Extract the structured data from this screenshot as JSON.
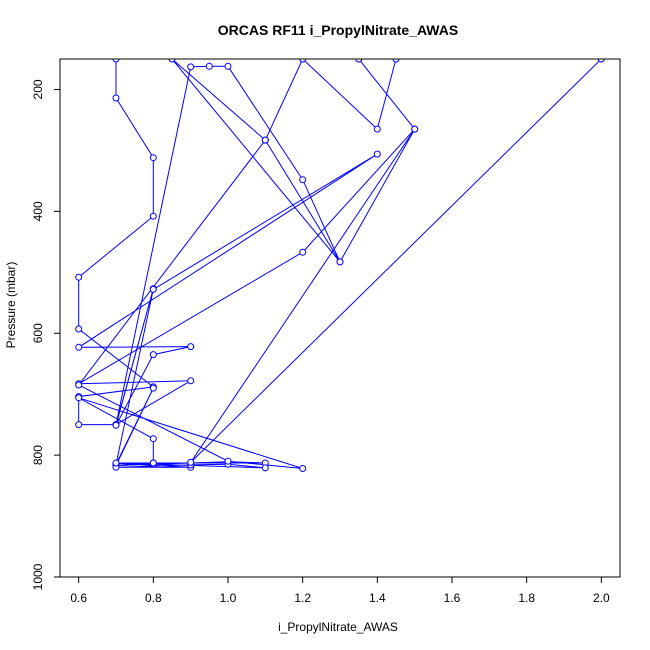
{
  "chart_data": {
    "type": "line",
    "title": "ORCAS RF11 i_PropylNitrate_AWAS",
    "xlabel": "i_PropylNitrate_AWAS",
    "ylabel": "Pressure (mbar)",
    "xlim": [
      0.55,
      2.05
    ],
    "ylim": [
      1000,
      150
    ],
    "y_reversed": true,
    "xticks": [
      "0.6",
      "0.8",
      "1.0",
      "1.2",
      "1.4",
      "1.6",
      "1.8",
      "2.0"
    ],
    "yticks": [
      "200",
      "400",
      "600",
      "800",
      "1000"
    ],
    "grid": false,
    "legend": "none",
    "line_color": "#0000ff",
    "marker": "open-circle",
    "series": [
      {
        "points": [
          [
            0.7,
            150
          ],
          [
            0.7,
            214
          ],
          [
            0.8,
            312
          ],
          [
            0.8,
            408
          ],
          [
            0.6,
            508
          ],
          [
            0.6,
            593
          ],
          [
            0.8,
            688
          ],
          [
            0.6,
            704
          ],
          [
            0.6,
            750
          ],
          [
            0.7,
            750
          ],
          [
            0.9,
            678
          ],
          [
            0.6,
            683
          ],
          [
            1.2,
            467
          ],
          [
            1.5,
            265
          ],
          [
            1.3,
            483
          ],
          [
            1.2,
            348
          ],
          [
            1.0,
            162
          ],
          [
            0.95,
            162
          ],
          [
            0.9,
            163
          ],
          [
            0.7,
            750
          ],
          [
            0.8,
            527
          ],
          [
            0.7,
            751
          ],
          [
            0.8,
            635
          ],
          [
            0.9,
            622
          ],
          [
            0.6,
            623
          ],
          [
            1.4,
            306
          ],
          [
            0.8,
            528
          ],
          [
            0.7,
            815
          ],
          [
            0.8,
            690
          ],
          [
            0.7,
            817
          ],
          [
            0.9,
            813
          ],
          [
            1.0,
            811
          ],
          [
            1.1,
            813
          ],
          [
            0.8,
            813
          ],
          [
            0.7,
            814
          ],
          [
            0.9,
            820
          ],
          [
            0.7,
            820
          ],
          [
            0.9,
            816
          ],
          [
            1.0,
            815
          ],
          [
            1.1,
            821
          ],
          [
            0.7,
            813
          ],
          [
            0.8,
            813
          ],
          [
            0.8,
            773
          ],
          [
            0.6,
            706
          ],
          [
            1.2,
            822
          ],
          [
            1.0,
            810
          ],
          [
            0.6,
            685
          ],
          [
            1.1,
            283
          ],
          [
            1.3,
            483
          ],
          [
            0.85,
            150
          ],
          [
            1.1,
            283
          ],
          [
            1.2,
            150
          ],
          [
            1.4,
            265
          ],
          [
            1.45,
            150
          ],
          [
            1.35,
            150
          ],
          [
            1.5,
            265
          ],
          [
            0.9,
            812
          ],
          [
            2.0,
            150
          ]
        ]
      }
    ]
  }
}
